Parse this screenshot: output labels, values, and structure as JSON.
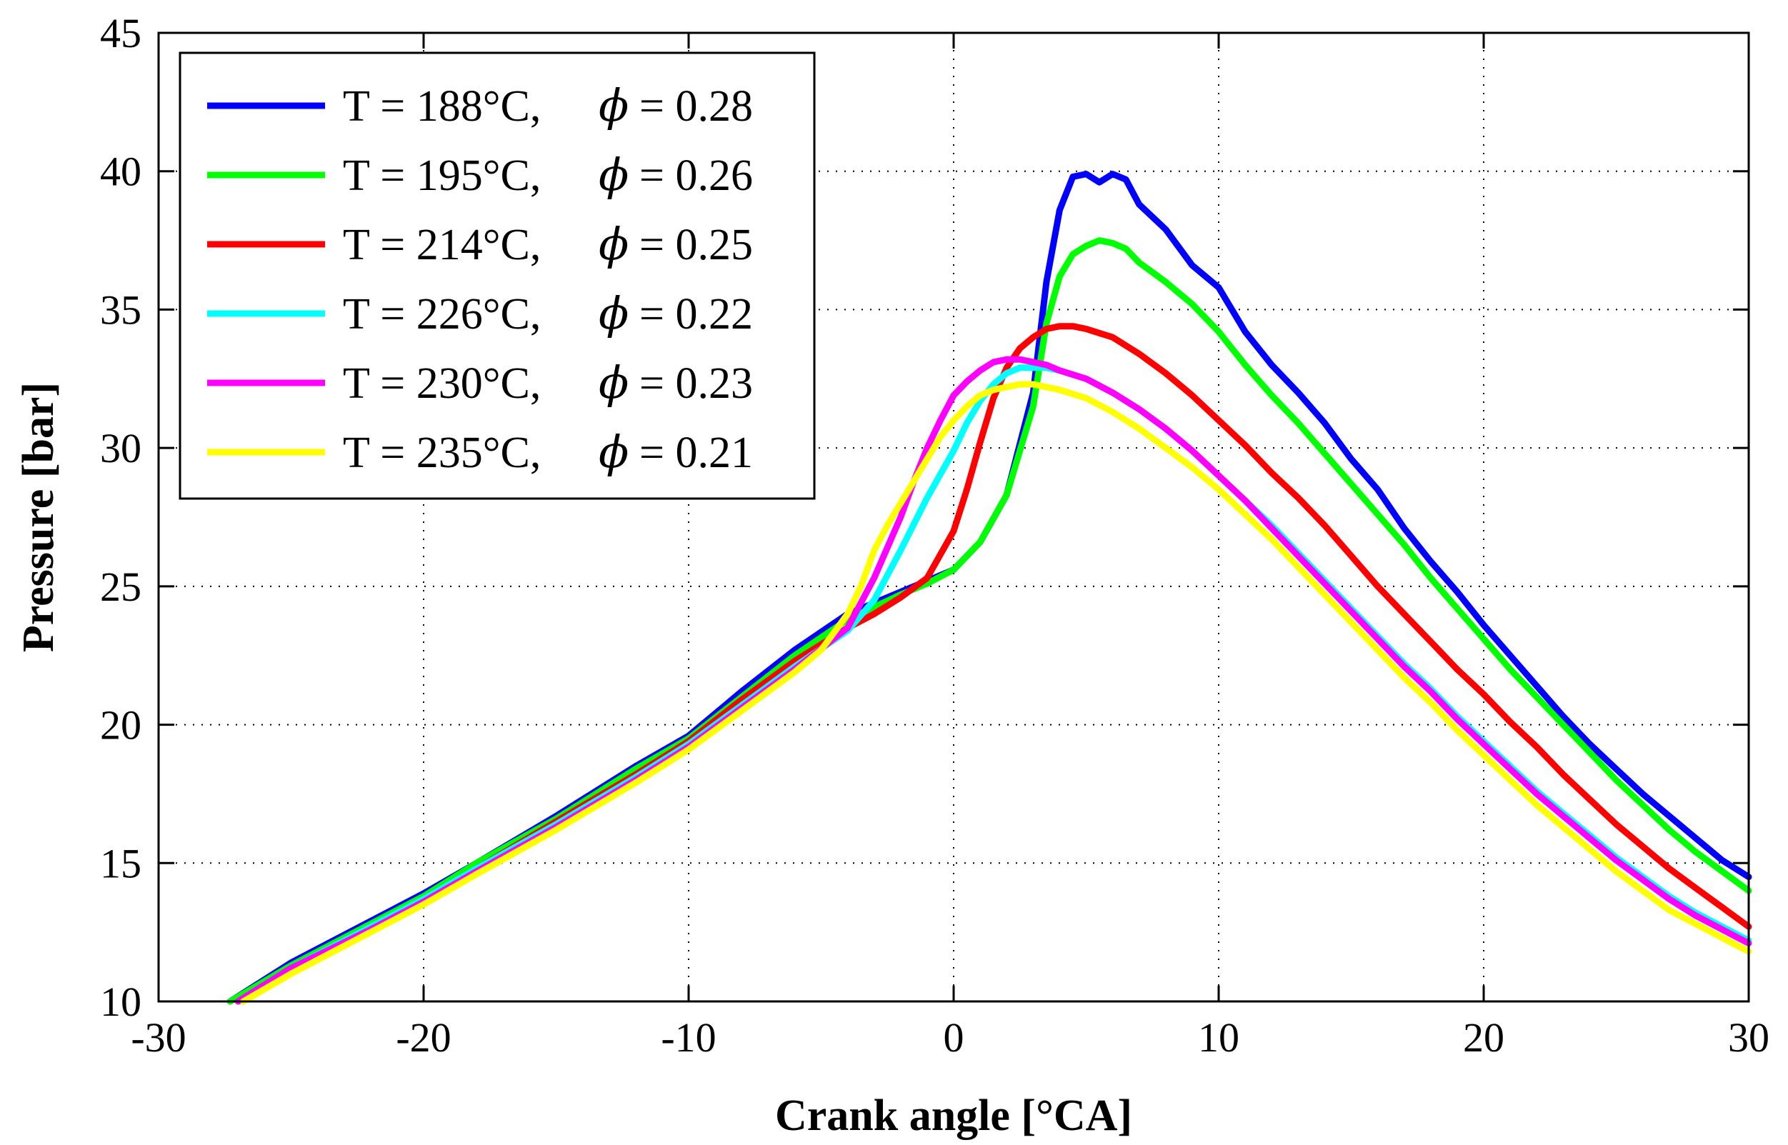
{
  "chart_data": {
    "type": "line",
    "title": "",
    "xlabel": "Crank angle [°CA]",
    "ylabel": "Pressure [bar]",
    "xlim": [
      -30,
      30
    ],
    "ylim": [
      10,
      45
    ],
    "xticks": [
      -30,
      -20,
      -10,
      0,
      10,
      20,
      30
    ],
    "yticks": [
      10,
      15,
      20,
      25,
      30,
      35,
      40,
      45
    ],
    "xtick_labels": [
      "-30",
      "-20",
      "-10",
      "0",
      "10",
      "20",
      "30"
    ],
    "ytick_labels": [
      "10",
      "15",
      "20",
      "25",
      "30",
      "35",
      "40",
      "45"
    ],
    "grid": true,
    "legend_position": "top-left",
    "series": [
      {
        "name": "T = 188°C,  ϕ = 0.28",
        "temp_label": "T = 188°C,",
        "phi_label": "= 0.28",
        "color": "#0000ff",
        "x": [
          -27.3,
          -25,
          -22,
          -20,
          -18,
          -15,
          -12,
          -10,
          -8,
          -6,
          -4,
          -2,
          -1,
          0,
          1,
          2,
          3,
          3.5,
          4,
          4.5,
          5,
          5.5,
          6,
          6.5,
          7,
          8,
          9,
          10,
          11,
          12,
          13,
          14,
          15,
          16,
          17,
          18,
          19,
          20,
          21,
          22,
          23,
          24,
          25,
          26,
          27,
          28,
          29,
          30
        ],
        "y": [
          10,
          11.4,
          12.9,
          13.9,
          15.0,
          16.7,
          18.5,
          19.6,
          21.2,
          22.7,
          24.0,
          24.8,
          25.2,
          25.6,
          26.6,
          28.3,
          32.0,
          36.0,
          38.6,
          39.8,
          39.9,
          39.6,
          39.9,
          39.7,
          38.8,
          37.9,
          36.6,
          35.8,
          34.2,
          33.0,
          32.0,
          30.9,
          29.6,
          28.5,
          27.1,
          25.9,
          24.8,
          23.6,
          22.5,
          21.4,
          20.3,
          19.3,
          18.4,
          17.5,
          16.7,
          15.9,
          15.1,
          14.5
        ]
      },
      {
        "name": "T = 195°C,  ϕ = 0.26",
        "temp_label": "T = 195°C,",
        "phi_label": "= 0.26",
        "color": "#00ff00",
        "x": [
          -27.3,
          -25,
          -22,
          -20,
          -18,
          -15,
          -12,
          -10,
          -8,
          -6,
          -4,
          -2,
          -1,
          0,
          1,
          2,
          3,
          3.5,
          4,
          4.5,
          5,
          5.5,
          6,
          6.5,
          7,
          8,
          9,
          10,
          11,
          12,
          13,
          14,
          15,
          16,
          17,
          18,
          19,
          20,
          21,
          22,
          23,
          24,
          25,
          26,
          27,
          28,
          29,
          30
        ],
        "y": [
          10,
          11.3,
          12.8,
          13.8,
          15.0,
          16.6,
          18.4,
          19.5,
          21.0,
          22.5,
          23.8,
          24.7,
          25.1,
          25.6,
          26.6,
          28.3,
          31.5,
          34.5,
          36.2,
          37.0,
          37.3,
          37.5,
          37.4,
          37.2,
          36.7,
          36.0,
          35.2,
          34.2,
          33.0,
          31.9,
          30.9,
          29.8,
          28.7,
          27.6,
          26.5,
          25.3,
          24.2,
          23.1,
          22.0,
          21.0,
          20.0,
          19.0,
          18.0,
          17.1,
          16.2,
          15.4,
          14.7,
          14.0
        ]
      },
      {
        "name": "T = 214°C,  ϕ = 0.25",
        "temp_label": "T = 214°C,",
        "phi_label": "= 0.25",
        "color": "#ff0000",
        "x": [
          -27,
          -25,
          -22,
          -20,
          -18,
          -15,
          -12,
          -10,
          -8,
          -6,
          -4,
          -3,
          -2,
          -1,
          0,
          0.5,
          1,
          1.5,
          2,
          2.5,
          3,
          3.5,
          4,
          4.5,
          5,
          6,
          7,
          8,
          9,
          10,
          11,
          12,
          13,
          14,
          15,
          16,
          17,
          18,
          19,
          20,
          21,
          22,
          23,
          24,
          25,
          26,
          27,
          28,
          29,
          30
        ],
        "y": [
          10,
          11.2,
          12.7,
          13.7,
          14.8,
          16.5,
          18.2,
          19.4,
          20.9,
          22.3,
          23.5,
          24.0,
          24.6,
          25.3,
          27.0,
          28.5,
          30.2,
          31.8,
          32.9,
          33.6,
          34.0,
          34.3,
          34.4,
          34.4,
          34.3,
          34.0,
          33.4,
          32.7,
          31.9,
          31.0,
          30.1,
          29.1,
          28.2,
          27.2,
          26.1,
          25.0,
          24.0,
          23.0,
          22.0,
          21.1,
          20.1,
          19.2,
          18.2,
          17.3,
          16.4,
          15.6,
          14.8,
          14.1,
          13.4,
          12.7
        ]
      },
      {
        "name": "T = 226°C,  ϕ = 0.22",
        "temp_label": "T = 226°C,",
        "phi_label": "= 0.22",
        "color": "#00ffff",
        "x": [
          -27,
          -25,
          -22,
          -20,
          -18,
          -15,
          -12,
          -10,
          -8,
          -6,
          -4,
          -3,
          -2,
          -1,
          0,
          0.5,
          1,
          1.5,
          2,
          2.5,
          3,
          3.5,
          4,
          5,
          6,
          7,
          8,
          9,
          10,
          11,
          12,
          13,
          14,
          15,
          16,
          17,
          18,
          19,
          20,
          21,
          22,
          23,
          24,
          25,
          26,
          27,
          28,
          29,
          30
        ],
        "y": [
          10,
          11.2,
          12.7,
          13.7,
          14.8,
          16.4,
          18.1,
          19.3,
          20.7,
          22.1,
          23.4,
          24.5,
          26.3,
          28.2,
          29.9,
          30.9,
          31.7,
          32.3,
          32.7,
          32.9,
          32.9,
          32.9,
          32.8,
          32.5,
          32.0,
          31.4,
          30.7,
          29.9,
          29.0,
          28.1,
          27.2,
          26.2,
          25.2,
          24.2,
          23.2,
          22.2,
          21.3,
          20.3,
          19.4,
          18.5,
          17.6,
          16.8,
          16.0,
          15.2,
          14.5,
          13.8,
          13.2,
          12.7,
          12.2
        ]
      },
      {
        "name": "T = 230°C,  ϕ = 0.23",
        "temp_label": "T = 230°C,",
        "phi_label": "= 0.23",
        "color": "#ff00ff",
        "x": [
          -27,
          -25,
          -22,
          -20,
          -18,
          -15,
          -12,
          -10,
          -8,
          -6,
          -4,
          -3,
          -2,
          -1.5,
          -1,
          -0.5,
          0,
          0.5,
          1,
          1.5,
          2,
          2.5,
          3,
          3.5,
          4,
          5,
          6,
          7,
          8,
          9,
          10,
          11,
          12,
          13,
          14,
          15,
          16,
          17,
          18,
          19,
          20,
          21,
          22,
          23,
          24,
          25,
          26,
          27,
          28,
          29,
          30
        ],
        "y": [
          10,
          11.2,
          12.6,
          13.6,
          14.7,
          16.3,
          18.0,
          19.2,
          20.6,
          22.0,
          23.5,
          25.3,
          27.5,
          28.8,
          30.0,
          31.0,
          31.9,
          32.4,
          32.8,
          33.1,
          33.2,
          33.2,
          33.1,
          33.0,
          32.8,
          32.5,
          32.0,
          31.4,
          30.7,
          29.9,
          29.0,
          28.1,
          27.1,
          26.1,
          25.1,
          24.1,
          23.1,
          22.1,
          21.2,
          20.2,
          19.3,
          18.4,
          17.5,
          16.7,
          15.9,
          15.1,
          14.4,
          13.7,
          13.1,
          12.6,
          12.1
        ]
      },
      {
        "name": "T = 235°C,  ϕ = 0.21",
        "temp_label": "T = 235°C,",
        "phi_label": "= 0.21",
        "color": "#ffff00",
        "x": [
          -26.8,
          -25,
          -22,
          -20,
          -18,
          -15,
          -12,
          -10,
          -8,
          -6,
          -5,
          -4,
          -3.5,
          -3,
          -2.5,
          -2,
          -1.5,
          -1,
          -0.5,
          0,
          0.5,
          1,
          1.5,
          2,
          2.5,
          3,
          3.5,
          4,
          5,
          6,
          7,
          8,
          9,
          10,
          11,
          12,
          13,
          14,
          15,
          16,
          17,
          18,
          19,
          20,
          21,
          22,
          23,
          24,
          25,
          26,
          27,
          28,
          29,
          30
        ],
        "y": [
          10,
          11.0,
          12.5,
          13.5,
          14.6,
          16.2,
          17.9,
          19.1,
          20.5,
          21.9,
          22.7,
          24.0,
          25.0,
          26.3,
          27.2,
          28.0,
          28.8,
          29.6,
          30.4,
          31.0,
          31.5,
          31.9,
          32.1,
          32.2,
          32.3,
          32.3,
          32.2,
          32.1,
          31.8,
          31.3,
          30.7,
          30.0,
          29.3,
          28.5,
          27.6,
          26.7,
          25.7,
          24.7,
          23.7,
          22.7,
          21.7,
          20.8,
          19.8,
          18.9,
          18.0,
          17.1,
          16.3,
          15.5,
          14.7,
          14.0,
          13.3,
          12.8,
          12.3,
          11.8
        ]
      }
    ]
  }
}
